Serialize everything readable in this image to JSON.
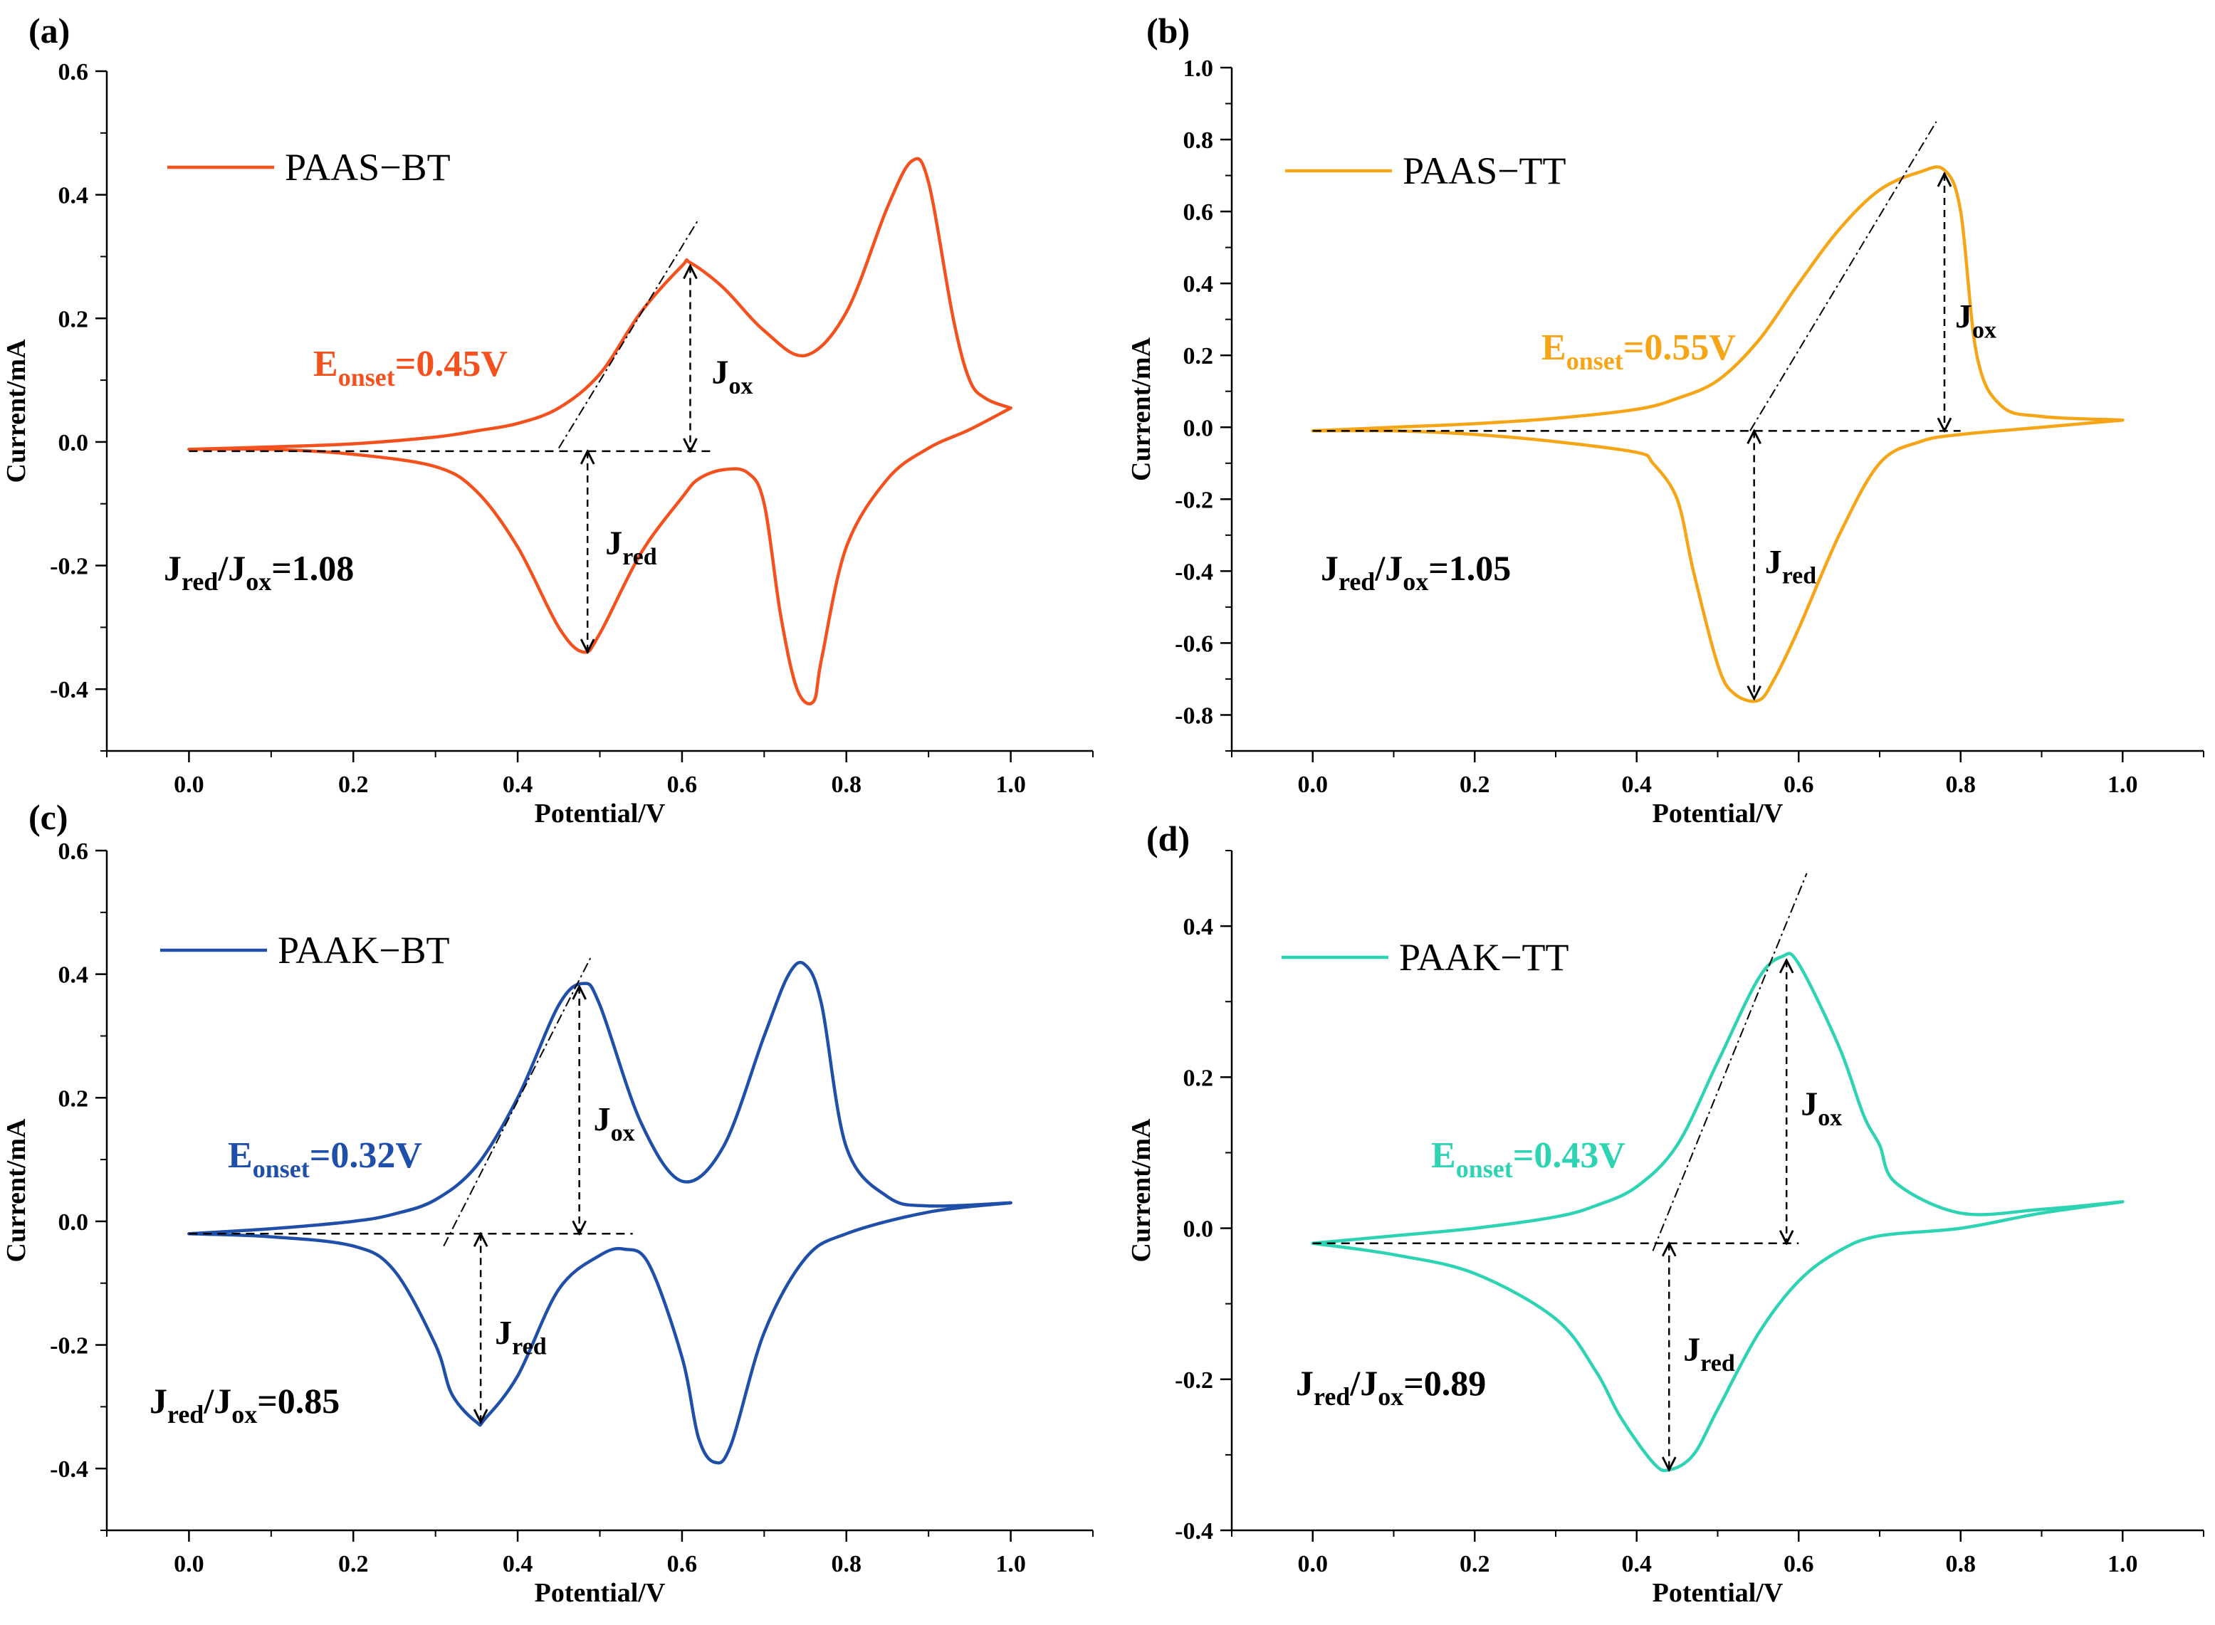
{
  "figure": {
    "panels": [
      {
        "panel_label": "(a)",
        "color": "#F4511E",
        "legend": "PAAS−BT",
        "xlabel": "Potential/V",
        "ylabel": "Current/mA",
        "x_ticks": [
          "0.0",
          "0.2",
          "0.4",
          "0.6",
          "0.8",
          "1.0"
        ],
        "y_ticks": [
          "0.6",
          "0.4",
          "0.2",
          "0.0",
          "-0.2",
          "-0.4"
        ],
        "onset": {
          "letter": "E",
          "sub": "onset",
          "value": "=0.45V"
        },
        "ratio": {
          "j1": "J",
          "s1": "red",
          "mid": "/J",
          "s2": "ox",
          "value": "=1.08"
        },
        "jox": {
          "letter": "J",
          "sub": "ox"
        },
        "jred": {
          "letter": "J",
          "sub": "red"
        }
      },
      {
        "panel_label": "(b)",
        "color": "#F5A516",
        "legend": "PAAS−TT",
        "xlabel": "Potential/V",
        "ylabel": "Current/mA",
        "x_ticks": [
          "0.0",
          "0.2",
          "0.4",
          "0.6",
          "0.8",
          "1.0"
        ],
        "y_ticks": [
          "1.0",
          "0.8",
          "0.6",
          "0.4",
          "0.2",
          "0.0",
          "-0.2",
          "-0.4",
          "-0.6",
          "-0.8"
        ],
        "onset": {
          "letter": "E",
          "sub": "onset",
          "value": "=0.55V"
        },
        "ratio": {
          "j1": "J",
          "s1": "red",
          "mid": "/J",
          "s2": "ox",
          "value": "=1.05"
        },
        "jox": {
          "letter": "J",
          "sub": "ox"
        },
        "jred": {
          "letter": "J",
          "sub": "red"
        }
      },
      {
        "panel_label": "(c)",
        "color": "#1F4FA8",
        "legend": "PAAK−BT",
        "xlabel": "Potential/V",
        "ylabel": "Current/mA",
        "x_ticks": [
          "0.0",
          "0.2",
          "0.4",
          "0.6",
          "0.8",
          "1.0"
        ],
        "y_ticks": [
          "0.6",
          "0.4",
          "0.2",
          "0.0",
          "-0.2",
          "-0.4"
        ],
        "onset": {
          "letter": "E",
          "sub": "onset",
          "value": "=0.32V"
        },
        "ratio": {
          "j1": "J",
          "s1": "red",
          "mid": "/J",
          "s2": "ox",
          "value": "=0.85"
        },
        "jox": {
          "letter": "J",
          "sub": "ox"
        },
        "jred": {
          "letter": "J",
          "sub": "red"
        }
      },
      {
        "panel_label": "(d)",
        "color": "#2ED3B3",
        "legend": "PAAK−TT",
        "xlabel": "Potential/V",
        "ylabel": "Current/mA",
        "x_ticks": [
          "0.0",
          "0.2",
          "0.4",
          "0.6",
          "0.8",
          "1.0"
        ],
        "y_ticks": [
          "0.4",
          "0.2",
          "0.0",
          "-0.2",
          "-0.4"
        ],
        "onset": {
          "letter": "E",
          "sub": "onset",
          "value": "=0.43V"
        },
        "ratio": {
          "j1": "J",
          "s1": "red",
          "mid": "/J",
          "s2": "ox",
          "value": "=0.89"
        },
        "jox": {
          "letter": "J",
          "sub": "ox"
        },
        "jred": {
          "letter": "J",
          "sub": "red"
        }
      }
    ]
  },
  "chart_data": [
    {
      "type": "line",
      "title": "(a)",
      "xlabel": "Potential/V",
      "ylabel": "Current/mA",
      "xlim": [
        -0.1,
        1.1
      ],
      "ylim": [
        -0.5,
        0.6
      ],
      "series": [
        {
          "name": "PAAS−BT (forward)",
          "x": [
            0.0,
            0.1,
            0.2,
            0.3,
            0.35,
            0.4,
            0.45,
            0.5,
            0.55,
            0.6,
            0.61,
            0.65,
            0.7,
            0.75,
            0.8,
            0.85,
            0.88,
            0.9,
            0.93,
            0.95,
            0.97,
            1.0
          ],
          "y": [
            -0.012,
            -0.008,
            -0.003,
            0.008,
            0.018,
            0.03,
            0.055,
            0.11,
            0.21,
            0.285,
            0.29,
            0.25,
            0.18,
            0.14,
            0.21,
            0.38,
            0.455,
            0.42,
            0.2,
            0.1,
            0.07,
            0.055
          ]
        },
        {
          "name": "PAAS−BT (reverse)",
          "x": [
            1.0,
            0.95,
            0.9,
            0.85,
            0.8,
            0.77,
            0.76,
            0.74,
            0.72,
            0.7,
            0.68,
            0.65,
            0.62,
            0.6,
            0.55,
            0.5,
            0.48,
            0.45,
            0.4,
            0.35,
            0.3,
            0.2,
            0.1,
            0.0
          ],
          "y": [
            0.055,
            0.02,
            -0.01,
            -0.06,
            -0.17,
            -0.35,
            -0.42,
            -0.4,
            -0.28,
            -0.1,
            -0.05,
            -0.045,
            -0.06,
            -0.09,
            -0.18,
            -0.31,
            -0.34,
            -0.3,
            -0.17,
            -0.08,
            -0.04,
            -0.02,
            -0.012,
            -0.012
          ]
        }
      ],
      "annotations": [
        "E_onset=0.45V",
        "J_ox",
        "J_red",
        "J_red/J_ox=1.08"
      ]
    },
    {
      "type": "line",
      "title": "(b)",
      "xlabel": "Potential/V",
      "ylabel": "Current/mA",
      "xlim": [
        -0.1,
        1.1
      ],
      "ylim": [
        -0.9,
        1.0
      ],
      "series": [
        {
          "name": "PAAS−TT (forward)",
          "x": [
            0.0,
            0.1,
            0.2,
            0.3,
            0.4,
            0.45,
            0.5,
            0.55,
            0.6,
            0.65,
            0.7,
            0.75,
            0.78,
            0.8,
            0.82,
            0.85,
            0.9,
            1.0
          ],
          "y": [
            -0.01,
            0.0,
            0.01,
            0.025,
            0.05,
            0.08,
            0.13,
            0.24,
            0.4,
            0.55,
            0.66,
            0.71,
            0.715,
            0.6,
            0.2,
            0.06,
            0.03,
            0.02
          ]
        },
        {
          "name": "PAAS−TT (reverse)",
          "x": [
            1.0,
            0.9,
            0.8,
            0.75,
            0.7,
            0.65,
            0.6,
            0.57,
            0.55,
            0.52,
            0.5,
            0.47,
            0.45,
            0.42,
            0.4,
            0.3,
            0.2,
            0.1,
            0.0
          ],
          "y": [
            0.02,
            0.0,
            -0.02,
            -0.04,
            -0.1,
            -0.3,
            -0.56,
            -0.7,
            -0.76,
            -0.74,
            -0.66,
            -0.4,
            -0.2,
            -0.1,
            -0.07,
            -0.04,
            -0.02,
            -0.01,
            -0.01
          ]
        }
      ],
      "annotations": [
        "E_onset=0.55V",
        "J_ox",
        "J_red",
        "J_red/J_ox=1.05"
      ]
    },
    {
      "type": "line",
      "title": "(c)",
      "xlabel": "Potential/V",
      "ylabel": "Current/mA",
      "xlim": [
        -0.1,
        1.1
      ],
      "ylim": [
        -0.5,
        0.6
      ],
      "series": [
        {
          "name": "PAAK−BT (forward)",
          "x": [
            0.0,
            0.1,
            0.2,
            0.25,
            0.3,
            0.35,
            0.4,
            0.45,
            0.48,
            0.5,
            0.55,
            0.6,
            0.65,
            0.7,
            0.73,
            0.75,
            0.77,
            0.8,
            0.85,
            0.9,
            1.0
          ],
          "y": [
            -0.02,
            -0.012,
            0.0,
            0.012,
            0.035,
            0.09,
            0.2,
            0.35,
            0.385,
            0.35,
            0.16,
            0.065,
            0.12,
            0.3,
            0.4,
            0.415,
            0.35,
            0.12,
            0.04,
            0.025,
            0.03
          ]
        },
        {
          "name": "PAAK−BT (reverse)",
          "x": [
            1.0,
            0.9,
            0.8,
            0.75,
            0.7,
            0.66,
            0.64,
            0.62,
            0.6,
            0.56,
            0.53,
            0.5,
            0.45,
            0.4,
            0.36,
            0.35,
            0.32,
            0.3,
            0.25,
            0.2,
            0.1,
            0.0
          ],
          "y": [
            0.03,
            0.015,
            -0.02,
            -0.06,
            -0.18,
            -0.36,
            -0.39,
            -0.35,
            -0.22,
            -0.07,
            -0.045,
            -0.055,
            -0.11,
            -0.25,
            -0.32,
            -0.325,
            -0.28,
            -0.2,
            -0.08,
            -0.04,
            -0.025,
            -0.02
          ]
        }
      ],
      "annotations": [
        "E_onset=0.32V",
        "J_ox",
        "J_red",
        "J_red/J_ox=0.85"
      ]
    },
    {
      "type": "line",
      "title": "(d)",
      "xlabel": "Potential/V",
      "ylabel": "Current/mA",
      "xlim": [
        -0.1,
        1.1
      ],
      "ylim": [
        -0.4,
        0.5
      ],
      "series": [
        {
          "name": "PAAK−TT (forward)",
          "x": [
            0.0,
            0.1,
            0.2,
            0.3,
            0.35,
            0.4,
            0.45,
            0.5,
            0.55,
            0.58,
            0.6,
            0.65,
            0.68,
            0.7,
            0.72,
            0.8,
            0.9,
            1.0
          ],
          "y": [
            -0.02,
            -0.01,
            0.0,
            0.015,
            0.03,
            0.055,
            0.11,
            0.22,
            0.33,
            0.36,
            0.35,
            0.24,
            0.15,
            0.11,
            0.06,
            0.02,
            0.025,
            0.035
          ]
        },
        {
          "name": "PAAK−TT (reverse)",
          "x": [
            1.0,
            0.9,
            0.8,
            0.7,
            0.65,
            0.6,
            0.55,
            0.5,
            0.47,
            0.44,
            0.42,
            0.38,
            0.35,
            0.3,
            0.2,
            0.1,
            0.0
          ],
          "y": [
            0.035,
            0.02,
            0.0,
            -0.01,
            -0.03,
            -0.07,
            -0.14,
            -0.24,
            -0.3,
            -0.32,
            -0.31,
            -0.25,
            -0.19,
            -0.12,
            -0.06,
            -0.035,
            -0.02
          ]
        }
      ],
      "annotations": [
        "E_onset=0.43V",
        "J_ox",
        "J_red",
        "J_red/J_ox=0.89"
      ]
    }
  ]
}
